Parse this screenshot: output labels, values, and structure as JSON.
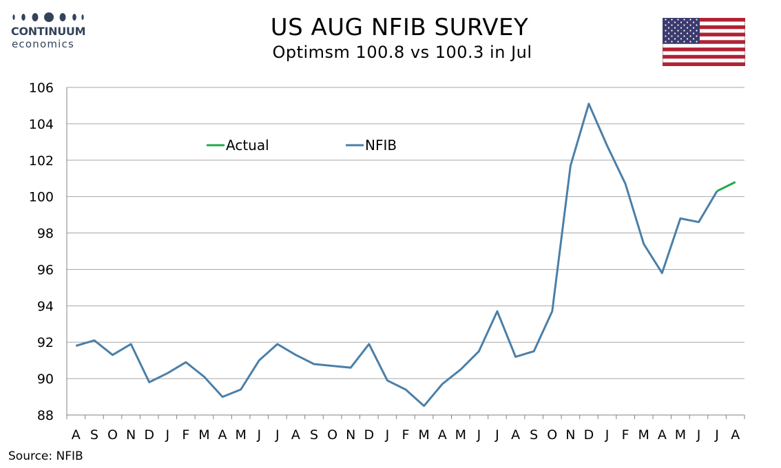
{
  "header": {
    "title": "US AUG NFIB SURVEY",
    "subtitle": "Optimsm 100.8 vs 100.3 in Jul"
  },
  "logo": {
    "name": "CONTINUUM",
    "sub": "economics",
    "color": "#33435a"
  },
  "flag": {
    "icon": "us-flag-icon"
  },
  "source": "Source: NFIB",
  "colors": {
    "nfib": "#4a7fa8",
    "actual": "#1faa4a",
    "grid": "#a6a6a6"
  },
  "chart_data": {
    "type": "line",
    "title": "US AUG NFIB SURVEY",
    "subtitle": "Optimsm 100.8 vs 100.3 in Jul",
    "categories": [
      "A",
      "S",
      "O",
      "N",
      "D",
      "J",
      "F",
      "M",
      "A",
      "M",
      "J",
      "J",
      "A",
      "S",
      "O",
      "N",
      "D",
      "J",
      "F",
      "M",
      "A",
      "M",
      "J",
      "J",
      "A",
      "S",
      "O",
      "N",
      "D",
      "J",
      "F",
      "M",
      "A",
      "M",
      "J",
      "J",
      "A"
    ],
    "ylim": [
      88,
      106
    ],
    "yticks": [
      88,
      90,
      92,
      94,
      96,
      98,
      100,
      102,
      104,
      106
    ],
    "grid": true,
    "legend_position": "top-left",
    "series": [
      {
        "name": "NFIB",
        "color": "#4a7fa8",
        "values": [
          91.8,
          92.1,
          91.3,
          91.9,
          89.8,
          90.3,
          90.9,
          90.1,
          89.0,
          89.4,
          91.0,
          91.9,
          91.3,
          90.8,
          90.7,
          90.6,
          91.9,
          89.9,
          89.4,
          88.5,
          89.7,
          90.5,
          91.5,
          93.7,
          91.2,
          91.5,
          93.7,
          101.7,
          105.1,
          102.8,
          100.7,
          97.4,
          95.8,
          98.8,
          98.6,
          100.3,
          null
        ]
      },
      {
        "name": "Actual",
        "color": "#1faa4a",
        "values": [
          null,
          null,
          null,
          null,
          null,
          null,
          null,
          null,
          null,
          null,
          null,
          null,
          null,
          null,
          null,
          null,
          null,
          null,
          null,
          null,
          null,
          null,
          null,
          null,
          null,
          null,
          null,
          null,
          null,
          null,
          null,
          null,
          null,
          null,
          null,
          100.3,
          100.8
        ]
      }
    ],
    "legend": [
      "Actual",
      "NFIB"
    ]
  }
}
